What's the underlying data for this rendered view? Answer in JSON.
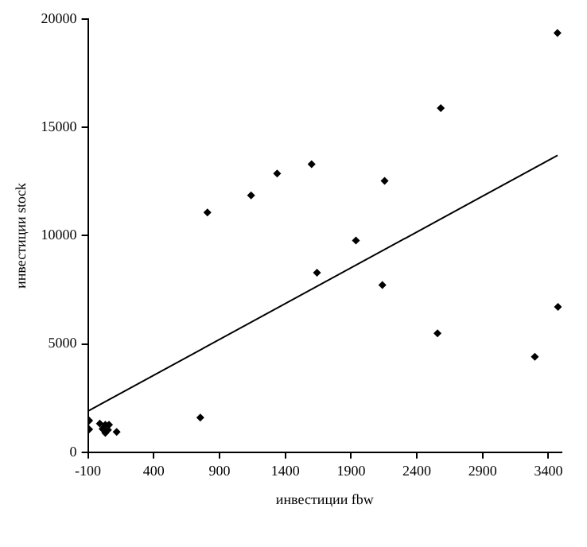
{
  "chart_data": {
    "type": "scatter",
    "xlabel": "инвестиции fbw",
    "ylabel": "инвестиции stock",
    "series": [
      {
        "color": "#000000",
        "marker": "diamond",
        "x": [
          3469,
          2582,
          1600,
          1338,
          1140,
          808,
          2155,
          1937,
          1641,
          2138,
          2557,
          3473,
          3297,
          754,
          -91,
          -91,
          -10,
          32,
          11,
          32,
          60,
          52,
          118
        ],
        "values": [
          19360,
          15890,
          13300,
          12870,
          11860,
          11070,
          12530,
          9780,
          8290,
          7720,
          5490,
          6710,
          4410,
          1600,
          1460,
          1060,
          1320,
          1270,
          1080,
          890,
          1270,
          1030,
          940
        ]
      },
      {
        "type": "line",
        "color": "#000000",
        "x": [
          -100,
          3470
        ],
        "values": [
          1900,
          13710
        ]
      }
    ],
    "xlim": [
      -100,
      3500
    ],
    "ylim": [
      0,
      20000
    ],
    "xticks": [
      -100,
      400,
      900,
      1400,
      1900,
      2400,
      2900,
      3400
    ],
    "yticks": [
      0,
      5000,
      10000,
      15000,
      20000
    ],
    "grid": false,
    "legend": false
  }
}
